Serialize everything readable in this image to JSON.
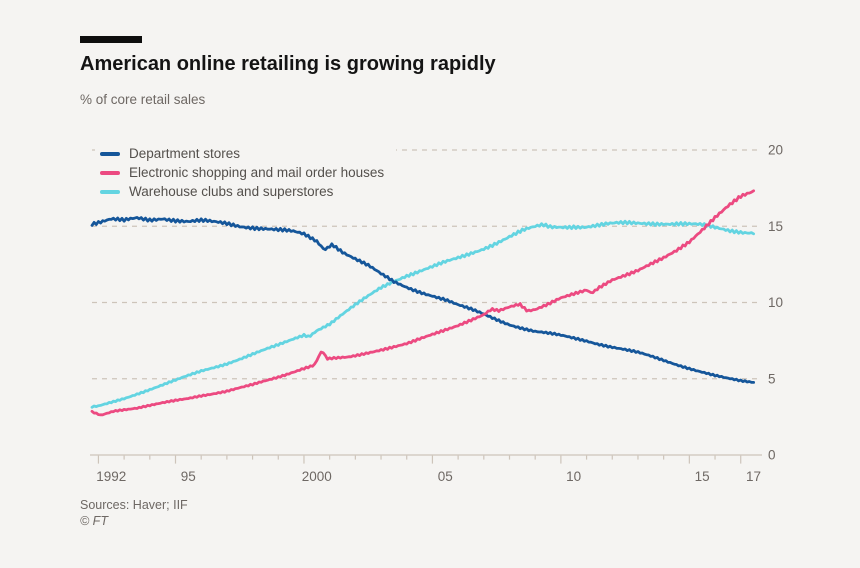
{
  "page": {
    "background": "#f5f4f2"
  },
  "header": {
    "title": "American online retailing is growing rapidly",
    "subtitle": "% of core retail sales"
  },
  "footer": {
    "sources": "Sources: Haver; IIF",
    "copyright": "© FT"
  },
  "colors": {
    "background": "#f5f4f2",
    "grid": "#cdc4ba",
    "axis_text": "#6e6864",
    "title_text": "#141414",
    "legend_text": "#54504c"
  },
  "chart_data": {
    "type": "line",
    "title": "American online retailing is growing rapidly",
    "subtitle": "% of core retail sales",
    "ylabel": "% of core retail sales",
    "ylim": [
      0,
      20
    ],
    "yticks": [
      0,
      5,
      10,
      15,
      20
    ],
    "x_domain": [
      1991.75,
      2017.75
    ],
    "xticks": [
      {
        "year": 1992,
        "label": "1992"
      },
      {
        "year": 1995,
        "label": "95"
      },
      {
        "year": 2000,
        "label": "2000"
      },
      {
        "year": 2005,
        "label": "05"
      },
      {
        "year": 2010,
        "label": "10"
      },
      {
        "year": 2015,
        "label": "15"
      },
      {
        "year": 2017,
        "label": "17"
      }
    ],
    "grid": "horizontal-dashed",
    "legend_position": "top-left",
    "series": [
      {
        "name": "Department stores",
        "color": "#15569a",
        "anchors": [
          [
            1991.75,
            15.2
          ],
          [
            1992,
            15.25
          ],
          [
            1992.5,
            15.4
          ],
          [
            1993,
            15.3
          ],
          [
            1993.5,
            15.5
          ],
          [
            1994,
            15.45
          ],
          [
            1994.5,
            15.6
          ],
          [
            1995,
            15.45
          ],
          [
            1995.5,
            15.3
          ],
          [
            1996,
            15.3
          ],
          [
            1996.5,
            15.2
          ],
          [
            1997,
            15.15
          ],
          [
            1997.5,
            15.05
          ],
          [
            1998,
            15.0
          ],
          [
            1998.5,
            14.9
          ],
          [
            1999,
            14.75
          ],
          [
            1999.5,
            14.6
          ],
          [
            2000,
            14.4
          ],
          [
            2000.5,
            14.0
          ],
          [
            2000.8,
            13.5
          ],
          [
            2001.1,
            13.9
          ],
          [
            2001.5,
            13.4
          ],
          [
            2002,
            12.9
          ],
          [
            2002.5,
            12.4
          ],
          [
            2003,
            11.8
          ],
          [
            2003.5,
            11.3
          ],
          [
            2004,
            11.0
          ],
          [
            2004.5,
            10.75
          ],
          [
            2005,
            10.5
          ],
          [
            2005.5,
            10.2
          ],
          [
            2006,
            9.8
          ],
          [
            2006.5,
            9.5
          ],
          [
            2007,
            9.2
          ],
          [
            2007.5,
            8.9
          ],
          [
            2008,
            8.6
          ],
          [
            2008.5,
            8.35
          ],
          [
            2009,
            8.1
          ],
          [
            2009.5,
            7.95
          ],
          [
            2010,
            7.8
          ],
          [
            2010.5,
            7.65
          ],
          [
            2011,
            7.5
          ],
          [
            2011.5,
            7.3
          ],
          [
            2012,
            7.1
          ],
          [
            2012.5,
            6.9
          ],
          [
            2013,
            6.7
          ],
          [
            2013.5,
            6.45
          ],
          [
            2014,
            6.2
          ],
          [
            2014.5,
            5.95
          ],
          [
            2015,
            5.7
          ],
          [
            2015.5,
            5.45
          ],
          [
            2016,
            5.2
          ],
          [
            2016.5,
            5.0
          ],
          [
            2017,
            4.85
          ],
          [
            2017.58,
            4.75
          ]
        ]
      },
      {
        "name": "Electronic shopping and mail order houses",
        "color": "#ec4a81",
        "anchors": [
          [
            1991.75,
            2.8
          ],
          [
            1992.1,
            2.6
          ],
          [
            1992.6,
            2.9
          ],
          [
            1993,
            3.0
          ],
          [
            1993.5,
            3.1
          ],
          [
            1994,
            3.25
          ],
          [
            1994.5,
            3.4
          ],
          [
            1995,
            3.55
          ],
          [
            1995.5,
            3.7
          ],
          [
            1996,
            3.9
          ],
          [
            1996.5,
            4.05
          ],
          [
            1997,
            4.2
          ],
          [
            1997.5,
            4.4
          ],
          [
            1998,
            4.6
          ],
          [
            1998.5,
            4.85
          ],
          [
            1999,
            5.1
          ],
          [
            1999.5,
            5.4
          ],
          [
            2000,
            5.7
          ],
          [
            2000.4,
            5.9
          ],
          [
            2000.7,
            6.85
          ],
          [
            2000.9,
            6.3
          ],
          [
            2001.3,
            6.35
          ],
          [
            2001.7,
            6.4
          ],
          [
            2002,
            6.5
          ],
          [
            2002.5,
            6.7
          ],
          [
            2003,
            6.9
          ],
          [
            2003.5,
            7.1
          ],
          [
            2004,
            7.3
          ],
          [
            2004.5,
            7.6
          ],
          [
            2005,
            7.9
          ],
          [
            2005.5,
            8.2
          ],
          [
            2006,
            8.5
          ],
          [
            2006.5,
            8.85
          ],
          [
            2007,
            9.2
          ],
          [
            2007.3,
            9.55
          ],
          [
            2007.6,
            9.45
          ],
          [
            2008,
            9.7
          ],
          [
            2008.4,
            9.9
          ],
          [
            2008.7,
            9.45
          ],
          [
            2009,
            9.55
          ],
          [
            2009.5,
            9.9
          ],
          [
            2010,
            10.3
          ],
          [
            2010.5,
            10.55
          ],
          [
            2011,
            10.8
          ],
          [
            2011.2,
            10.6
          ],
          [
            2011.5,
            11.0
          ],
          [
            2012,
            11.5
          ],
          [
            2012.5,
            11.8
          ],
          [
            2013,
            12.1
          ],
          [
            2013.5,
            12.5
          ],
          [
            2014,
            12.9
          ],
          [
            2014.5,
            13.4
          ],
          [
            2015,
            14.0
          ],
          [
            2015.5,
            14.8
          ],
          [
            2016,
            15.6
          ],
          [
            2016.5,
            16.3
          ],
          [
            2017,
            16.9
          ],
          [
            2017.58,
            17.3
          ]
        ]
      },
      {
        "name": "Warehouse clubs and superstores",
        "color": "#63d4e1",
        "anchors": [
          [
            1991.75,
            3.15
          ],
          [
            1992,
            3.2
          ],
          [
            1992.5,
            3.45
          ],
          [
            1993,
            3.7
          ],
          [
            1993.5,
            4.0
          ],
          [
            1994,
            4.3
          ],
          [
            1994.5,
            4.6
          ],
          [
            1995,
            4.9
          ],
          [
            1995.5,
            5.2
          ],
          [
            1996,
            5.5
          ],
          [
            1996.5,
            5.75
          ],
          [
            1997,
            6.0
          ],
          [
            1997.5,
            6.3
          ],
          [
            1998,
            6.6
          ],
          [
            1998.5,
            6.9
          ],
          [
            1999,
            7.2
          ],
          [
            1999.5,
            7.55
          ],
          [
            2000,
            7.9
          ],
          [
            2000.2,
            7.8
          ],
          [
            2000.5,
            8.2
          ],
          [
            2001,
            8.6
          ],
          [
            2001.5,
            9.2
          ],
          [
            2002,
            9.8
          ],
          [
            2002.5,
            10.4
          ],
          [
            2003,
            11.0
          ],
          [
            2003.5,
            11.45
          ],
          [
            2004,
            11.8
          ],
          [
            2004.5,
            12.05
          ],
          [
            2005,
            12.3
          ],
          [
            2005.5,
            12.6
          ],
          [
            2006,
            12.9
          ],
          [
            2006.5,
            13.25
          ],
          [
            2007,
            13.6
          ],
          [
            2007.5,
            13.95
          ],
          [
            2008,
            14.3
          ],
          [
            2008.5,
            14.65
          ],
          [
            2009,
            14.9
          ],
          [
            2009.3,
            15.05
          ],
          [
            2009.6,
            14.95
          ],
          [
            2010,
            15.0
          ],
          [
            2010.5,
            15.05
          ],
          [
            2011,
            15.0
          ],
          [
            2011.5,
            15.05
          ],
          [
            2012,
            15.1
          ],
          [
            2012.5,
            15.15
          ],
          [
            2013,
            15.2
          ],
          [
            2013.5,
            15.25
          ],
          [
            2014,
            15.25
          ],
          [
            2014.5,
            15.2
          ],
          [
            2015,
            15.1
          ],
          [
            2015.5,
            15.0
          ],
          [
            2016,
            14.85
          ],
          [
            2016.5,
            14.75
          ],
          [
            2017,
            14.7
          ],
          [
            2017.58,
            14.65
          ]
        ]
      }
    ]
  }
}
